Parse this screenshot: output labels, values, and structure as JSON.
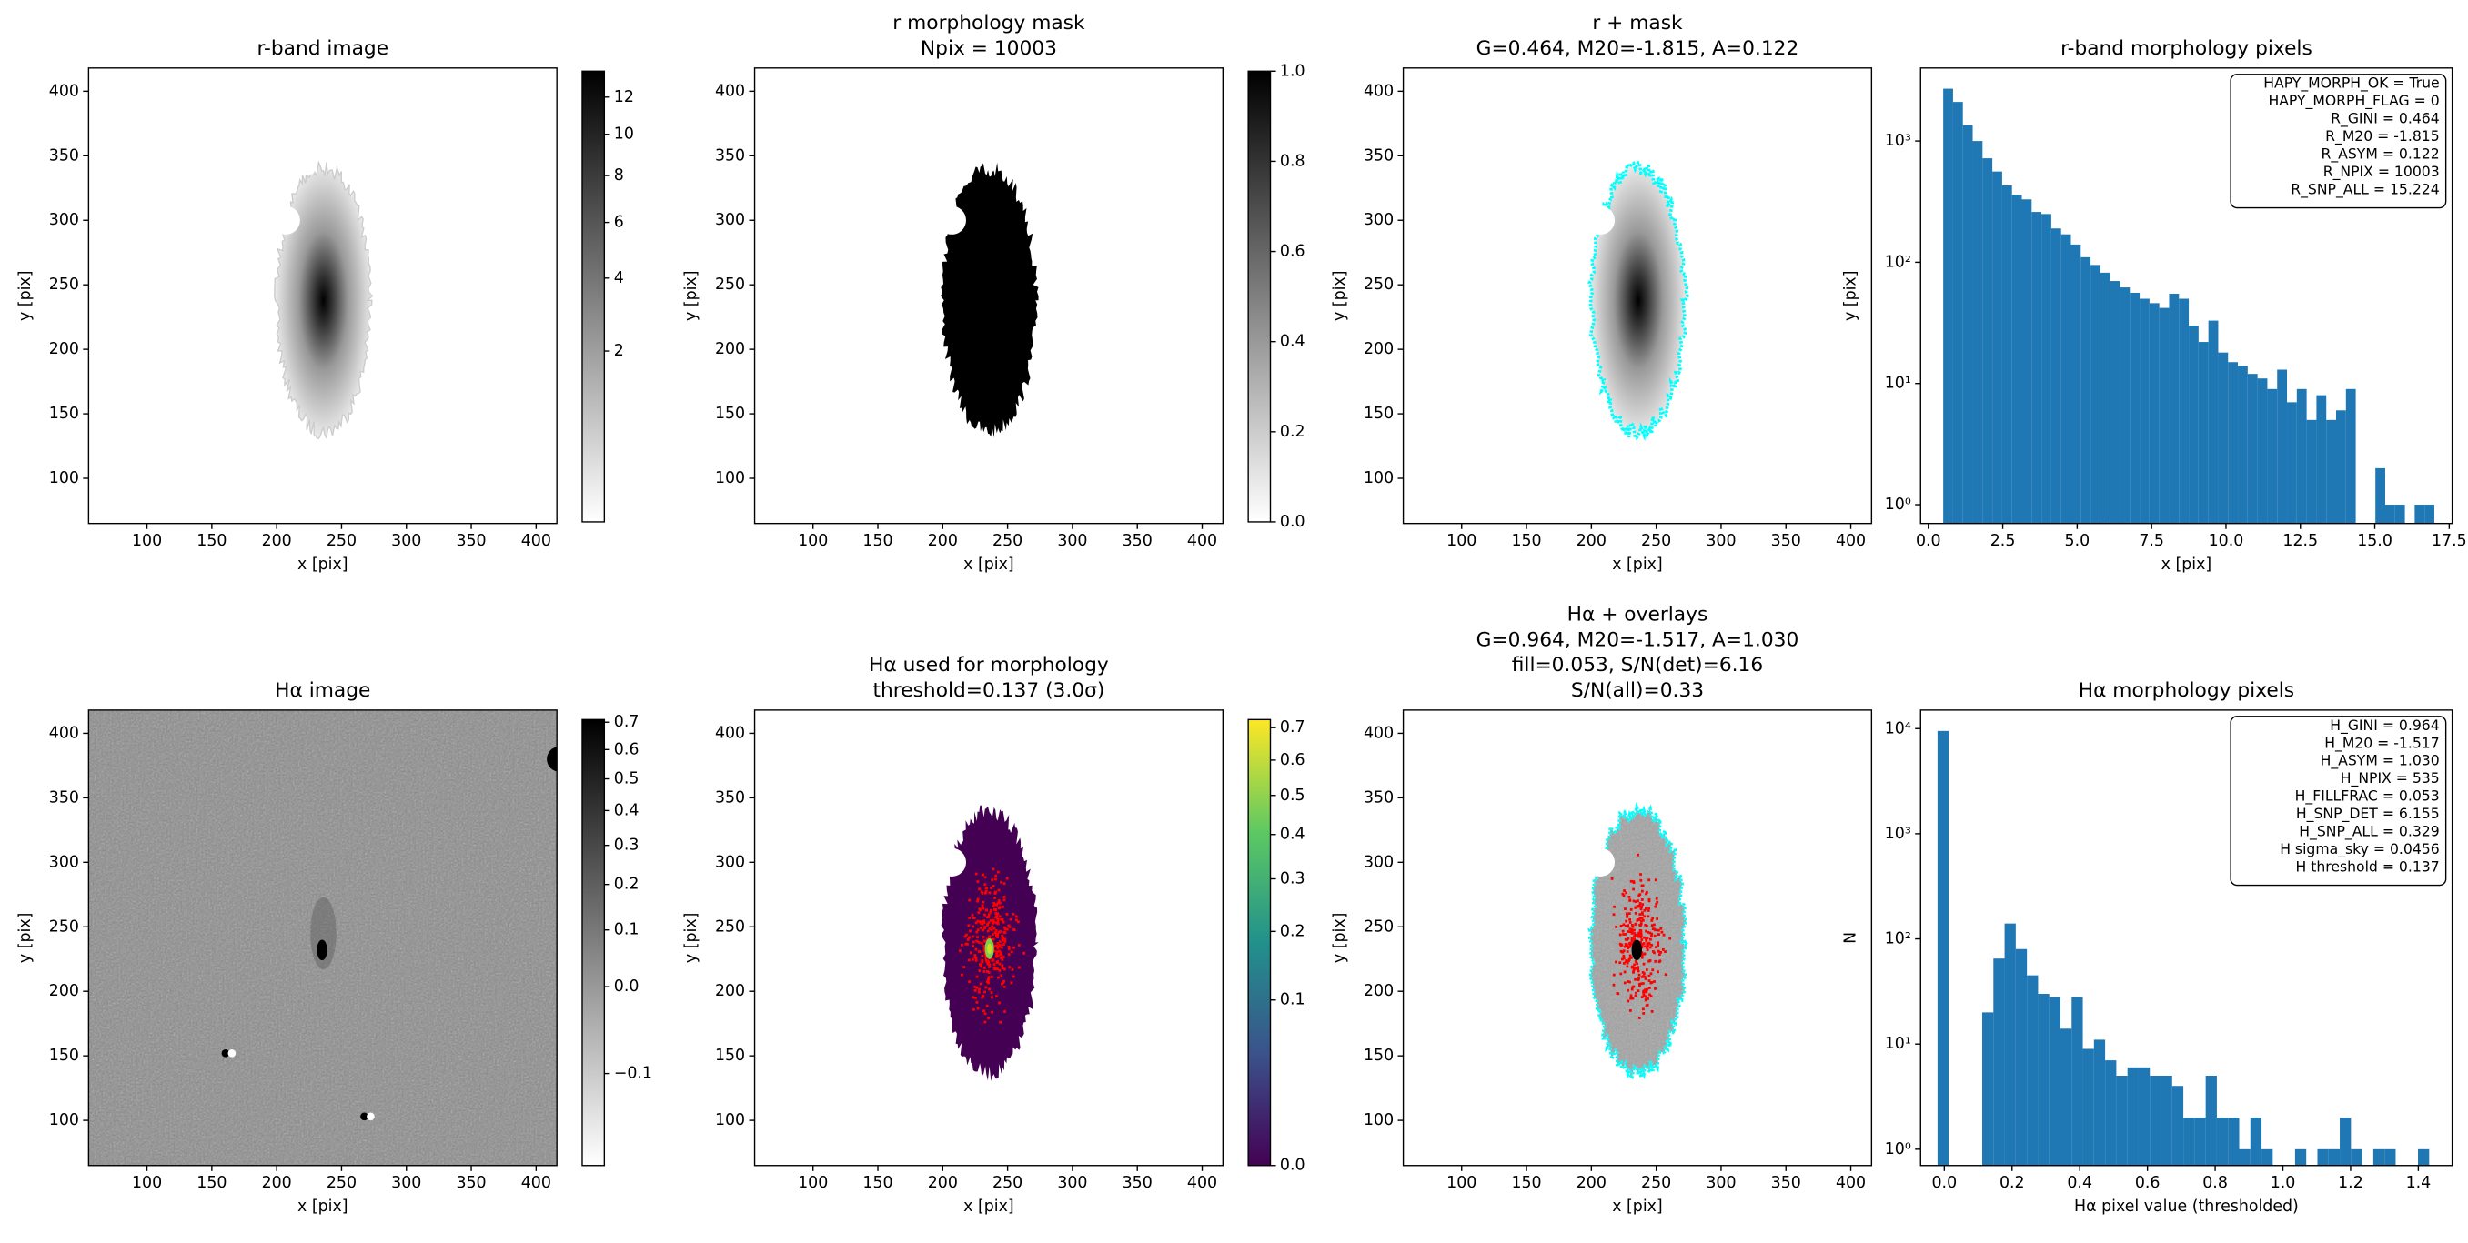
{
  "chart_data": [
    {
      "type": "image",
      "title": [
        "r-band image"
      ],
      "xlabel": "x [pix]",
      "ylabel": "y [pix]",
      "xlim": [
        55,
        416
      ],
      "ylim": [
        65,
        418
      ],
      "xticks": [
        100,
        150,
        200,
        250,
        300,
        350,
        400
      ],
      "yticks": [
        100,
        150,
        200,
        250,
        300,
        350,
        400
      ],
      "colorbar": {
        "cmap": "gray_r",
        "scale": "sqrt",
        "lim": [
          0.07,
          13.5
        ],
        "ticks": [
          2,
          4,
          6,
          8,
          10,
          12
        ]
      }
    },
    {
      "type": "image",
      "title": [
        "r morphology mask",
        "Npix = 10003"
      ],
      "xlabel": "x [pix]",
      "ylabel": "y [pix]",
      "xlim": [
        55,
        416
      ],
      "ylim": [
        65,
        418
      ],
      "xticks": [
        100,
        150,
        200,
        250,
        300,
        350,
        400
      ],
      "yticks": [
        100,
        150,
        200,
        250,
        300,
        350,
        400
      ],
      "colorbar": {
        "cmap": "gray_r",
        "scale": "linear",
        "lim": [
          0,
          1
        ],
        "ticks": [
          {
            "value": 0,
            "label": "0.0"
          },
          0.2,
          0.4,
          0.6,
          0.8,
          {
            "value": 1,
            "label": "1.0"
          }
        ]
      }
    },
    {
      "type": "image",
      "title": [
        "r + mask",
        "G=0.464, M20=-1.815, A=0.122"
      ],
      "xlabel": "x [pix]",
      "ylabel": "y [pix]",
      "xlim": [
        55,
        416
      ],
      "ylim": [
        65,
        418
      ],
      "xticks": [
        100,
        150,
        200,
        250,
        300,
        350,
        400
      ],
      "yticks": [
        100,
        150,
        200,
        250,
        300,
        350,
        400
      ]
    },
    {
      "type": "histogram",
      "title": [
        "r-band morphology pixels"
      ],
      "xlabel": "x [pix]",
      "ylabel": "y [pix]",
      "color": "#1f77b4",
      "yscale": "log",
      "xlim": [
        -0.26,
        17.6
      ],
      "ylim": [
        0.7,
        4000
      ],
      "xticks": [
        {
          "value": 0,
          "label": "0.0"
        },
        2.5,
        {
          "value": 5,
          "label": "5.0"
        },
        7.5,
        {
          "value": 10,
          "label": "10.0"
        },
        12.5,
        {
          "value": 15,
          "label": "15.0"
        },
        17.5
      ],
      "yticks": [
        {
          "value": 1,
          "label": "10⁰"
        },
        {
          "value": 10,
          "label": "10¹"
        },
        {
          "value": 100,
          "label": "10²"
        },
        {
          "value": 1000,
          "label": "10³"
        }
      ],
      "bins": [
        0.5,
        0.83,
        1.16,
        1.49,
        1.82,
        2.15,
        2.48,
        2.81,
        3.14,
        3.47,
        3.8,
        4.13,
        4.46,
        4.79,
        5.12,
        5.45,
        5.78,
        6.11,
        6.44,
        6.77,
        7.1,
        7.43,
        7.76,
        8.09,
        8.42,
        8.75,
        9.08,
        9.41,
        9.74,
        10.07,
        10.4,
        10.73,
        11.06,
        11.39,
        11.72,
        12.05,
        12.38,
        12.71,
        13.04,
        13.37,
        13.7,
        14.03,
        14.36,
        14.69,
        15.02,
        15.35,
        15.68,
        16.01,
        16.34,
        16.67,
        17.0
      ],
      "values": [
        2700,
        2100,
        1350,
        1000,
        720,
        560,
        430,
        360,
        330,
        260,
        250,
        190,
        170,
        140,
        110,
        95,
        82,
        70,
        62,
        56,
        50,
        46,
        42,
        55,
        50,
        30,
        22,
        33,
        18,
        15,
        14,
        12,
        11,
        9,
        13,
        7,
        9,
        5,
        8,
        5,
        6,
        9,
        0,
        0,
        2,
        1,
        1,
        0,
        1,
        1
      ],
      "annotation": [
        "HAPY_MORPH_OK = True",
        "HAPY_MORPH_FLAG = 0",
        "R_GINI = 0.464",
        "R_M20 = -1.815",
        "R_ASYM = 0.122",
        "R_NPIX = 10003",
        "R_SNP_ALL = 15.224"
      ]
    },
    {
      "type": "image",
      "title": [
        "Hα image"
      ],
      "xlabel": "x [pix]",
      "ylabel": "y [pix]",
      "xlim": [
        55,
        416
      ],
      "ylim": [
        65,
        418
      ],
      "xticks": [
        100,
        150,
        200,
        250,
        300,
        350,
        400
      ],
      "yticks": [
        100,
        150,
        200,
        250,
        300,
        350,
        400
      ],
      "colorbar": {
        "cmap": "gray_r",
        "scale": "sqrt",
        "lim": [
          -0.136,
          0.71
        ],
        "ticks": [
          {
            "value": -0.1,
            "label": "−0.1"
          },
          {
            "value": 0,
            "label": "0.0"
          },
          0.1,
          0.2,
          0.3,
          0.4,
          0.5,
          0.6,
          0.7
        ]
      }
    },
    {
      "type": "image",
      "title": [
        "Hα used for morphology",
        "threshold=0.137 (3.0σ)"
      ],
      "xlabel": "x [pix]",
      "ylabel": "y [pix]",
      "xlim": [
        55,
        416
      ],
      "ylim": [
        65,
        418
      ],
      "xticks": [
        100,
        150,
        200,
        250,
        300,
        350,
        400
      ],
      "yticks": [
        100,
        150,
        200,
        250,
        300,
        350,
        400
      ],
      "colorbar": {
        "cmap": "viridis",
        "scale": "sqrt",
        "lim": [
          0,
          0.726
        ],
        "ticks": [
          {
            "value": 0,
            "label": "0.0"
          },
          0.1,
          0.2,
          0.3,
          0.4,
          0.5,
          0.6,
          0.7
        ]
      }
    },
    {
      "type": "image",
      "title": [
        "Hα + overlays",
        "G=0.964, M20=-1.517, A=1.030",
        "fill=0.053, S/N(det)=6.16",
        "S/N(all)=0.33"
      ],
      "xlabel": "x [pix]",
      "ylabel": "y [pix]",
      "xlim": [
        55,
        416
      ],
      "ylim": [
        65,
        418
      ],
      "xticks": [
        100,
        150,
        200,
        250,
        300,
        350,
        400
      ],
      "yticks": [
        100,
        150,
        200,
        250,
        300,
        350,
        400
      ]
    },
    {
      "type": "histogram",
      "title": [
        "Hα morphology pixels"
      ],
      "xlabel": "Hα pixel value (thresholded)",
      "ylabel": "N",
      "color": "#1f77b4",
      "yscale": "log",
      "xlim": [
        -0.07,
        1.5
      ],
      "ylim": [
        0.7,
        15000
      ],
      "xticks": [
        {
          "value": 0,
          "label": "0.0"
        },
        0.2,
        0.4,
        0.6,
        0.8,
        {
          "value": 1,
          "label": "1.0"
        },
        1.2,
        1.4
      ],
      "yticks": [
        {
          "value": 1,
          "label": "10⁰"
        },
        {
          "value": 10,
          "label": "10¹"
        },
        {
          "value": 100,
          "label": "10²"
        },
        {
          "value": 1000,
          "label": "10³"
        },
        {
          "value": 10000,
          "label": "10⁴"
        }
      ],
      "bins": [
        -0.02,
        0.013,
        0.046,
        0.079,
        0.112,
        0.145,
        0.178,
        0.211,
        0.244,
        0.277,
        0.31,
        0.343,
        0.376,
        0.409,
        0.442,
        0.475,
        0.508,
        0.541,
        0.574,
        0.607,
        0.64,
        0.673,
        0.706,
        0.739,
        0.772,
        0.805,
        0.838,
        0.871,
        0.904,
        0.937,
        0.97,
        1.003,
        1.036,
        1.069,
        1.102,
        1.135,
        1.168,
        1.201,
        1.234,
        1.267,
        1.3,
        1.333,
        1.366,
        1.399,
        1.432
      ],
      "values": [
        9500,
        0,
        0,
        0,
        20,
        65,
        140,
        80,
        45,
        30,
        28,
        14,
        28,
        9,
        11,
        7,
        5,
        6,
        6,
        5,
        5,
        4,
        2,
        2,
        5,
        2,
        2,
        1,
        2,
        1,
        0,
        0,
        1,
        0,
        1,
        1,
        2,
        1,
        0,
        1,
        1,
        0,
        0,
        1
      ],
      "annotation": [
        "H_GINI = 0.964",
        "H_M20 = -1.517",
        "H_ASYM = 1.030",
        "H_NPIX = 535",
        "H_FILLFRAC = 0.053",
        "H_SNP_DET = 6.155",
        "H_SNP_ALL = 0.329",
        "H sigma_sky = 0.0456",
        "H threshold = 0.137"
      ]
    }
  ]
}
